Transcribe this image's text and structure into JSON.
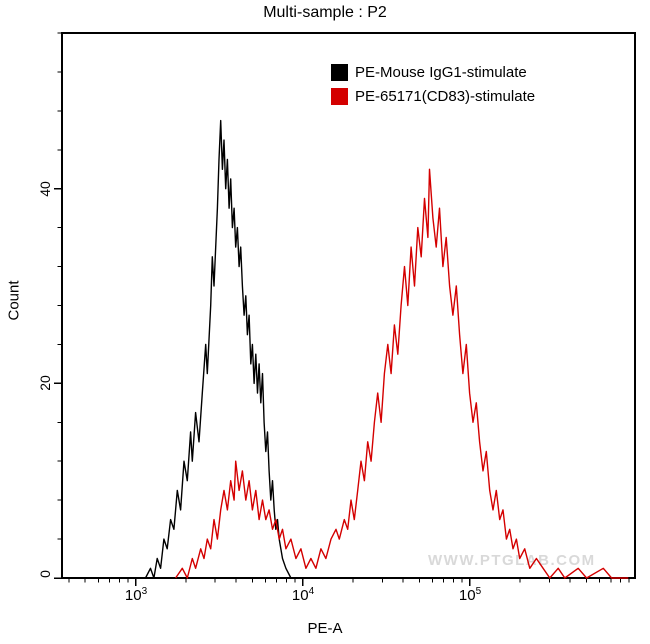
{
  "watermark": "WWW.PTGLAB.COM",
  "chart_data": {
    "type": "line",
    "subtype": "flow-cytometry-overlay-histogram",
    "title": "Multi-sample : P2",
    "xlabel": "PE-A",
    "ylabel": "Count",
    "x_scale": "log10",
    "xlim_log10": [
      2.56,
      5.99
    ],
    "ylim": [
      0,
      56
    ],
    "grid": false,
    "legend_position": "top-right",
    "x_tick_labels": [
      {
        "base": "10",
        "exp": "3"
      },
      {
        "base": "10",
        "exp": "4"
      },
      {
        "base": "10",
        "exp": "5"
      }
    ],
    "x_major_tick_exponents": [
      3,
      4,
      5
    ],
    "y_major_ticks": [
      0,
      20,
      40
    ],
    "y_tick_labels": [
      "0",
      "20",
      "40"
    ],
    "y_minor_tick_step": 4,
    "series": [
      {
        "name": "PE-Mouse IgG1-stimulate",
        "color": "#000000",
        "points": [
          [
            3.06,
            0
          ],
          [
            3.09,
            1
          ],
          [
            3.11,
            0
          ],
          [
            3.13,
            2
          ],
          [
            3.15,
            1
          ],
          [
            3.17,
            4
          ],
          [
            3.19,
            3
          ],
          [
            3.21,
            6
          ],
          [
            3.23,
            5
          ],
          [
            3.25,
            9
          ],
          [
            3.27,
            7
          ],
          [
            3.29,
            12
          ],
          [
            3.31,
            10
          ],
          [
            3.33,
            15
          ],
          [
            3.34,
            12
          ],
          [
            3.36,
            17
          ],
          [
            3.38,
            14
          ],
          [
            3.4,
            19
          ],
          [
            3.42,
            24
          ],
          [
            3.43,
            21
          ],
          [
            3.45,
            28
          ],
          [
            3.46,
            33
          ],
          [
            3.47,
            30
          ],
          [
            3.49,
            38
          ],
          [
            3.5,
            43
          ],
          [
            3.51,
            47
          ],
          [
            3.52,
            42
          ],
          [
            3.53,
            45
          ],
          [
            3.54,
            40
          ],
          [
            3.55,
            43
          ],
          [
            3.56,
            38
          ],
          [
            3.57,
            41
          ],
          [
            3.58,
            36
          ],
          [
            3.59,
            38
          ],
          [
            3.6,
            34
          ],
          [
            3.61,
            36
          ],
          [
            3.62,
            32
          ],
          [
            3.63,
            34
          ],
          [
            3.64,
            30
          ],
          [
            3.65,
            27
          ],
          [
            3.66,
            29
          ],
          [
            3.67,
            25
          ],
          [
            3.68,
            27
          ],
          [
            3.69,
            22
          ],
          [
            3.7,
            24
          ],
          [
            3.71,
            20
          ],
          [
            3.72,
            23
          ],
          [
            3.73,
            19
          ],
          [
            3.74,
            22
          ],
          [
            3.75,
            18
          ],
          [
            3.76,
            21
          ],
          [
            3.77,
            16
          ],
          [
            3.78,
            13
          ],
          [
            3.79,
            15
          ],
          [
            3.8,
            11
          ],
          [
            3.81,
            8
          ],
          [
            3.82,
            10
          ],
          [
            3.83,
            7
          ],
          [
            3.84,
            5
          ],
          [
            3.85,
            6
          ],
          [
            3.86,
            4
          ],
          [
            3.88,
            2
          ],
          [
            3.9,
            1
          ],
          [
            3.93,
            0
          ]
        ]
      },
      {
        "name": "PE-65171(CD83)-stimulate",
        "color": "#d40000",
        "points": [
          [
            3.24,
            0
          ],
          [
            3.28,
            1
          ],
          [
            3.31,
            0
          ],
          [
            3.34,
            2
          ],
          [
            3.36,
            1
          ],
          [
            3.39,
            3
          ],
          [
            3.41,
            2
          ],
          [
            3.43,
            4
          ],
          [
            3.45,
            3
          ],
          [
            3.47,
            6
          ],
          [
            3.49,
            4
          ],
          [
            3.51,
            7
          ],
          [
            3.53,
            9
          ],
          [
            3.55,
            7
          ],
          [
            3.57,
            10
          ],
          [
            3.59,
            8
          ],
          [
            3.6,
            12
          ],
          [
            3.62,
            9
          ],
          [
            3.64,
            11
          ],
          [
            3.66,
            8
          ],
          [
            3.68,
            10
          ],
          [
            3.7,
            7
          ],
          [
            3.72,
            9
          ],
          [
            3.74,
            6
          ],
          [
            3.76,
            8
          ],
          [
            3.78,
            6
          ],
          [
            3.8,
            7
          ],
          [
            3.82,
            5
          ],
          [
            3.84,
            6
          ],
          [
            3.86,
            4
          ],
          [
            3.88,
            5
          ],
          [
            3.9,
            3
          ],
          [
            3.93,
            4
          ],
          [
            3.96,
            2
          ],
          [
            3.99,
            3
          ],
          [
            4.02,
            1
          ],
          [
            4.05,
            2
          ],
          [
            4.08,
            1
          ],
          [
            4.11,
            3
          ],
          [
            4.14,
            2
          ],
          [
            4.17,
            4
          ],
          [
            4.2,
            5
          ],
          [
            4.22,
            4
          ],
          [
            4.25,
            6
          ],
          [
            4.27,
            5
          ],
          [
            4.29,
            8
          ],
          [
            4.31,
            6
          ],
          [
            4.33,
            9
          ],
          [
            4.35,
            12
          ],
          [
            4.37,
            10
          ],
          [
            4.39,
            14
          ],
          [
            4.41,
            12
          ],
          [
            4.43,
            16
          ],
          [
            4.45,
            19
          ],
          [
            4.47,
            16
          ],
          [
            4.49,
            21
          ],
          [
            4.51,
            24
          ],
          [
            4.53,
            21
          ],
          [
            4.55,
            26
          ],
          [
            4.57,
            23
          ],
          [
            4.59,
            28
          ],
          [
            4.61,
            32
          ],
          [
            4.63,
            28
          ],
          [
            4.65,
            34
          ],
          [
            4.67,
            30
          ],
          [
            4.69,
            36
          ],
          [
            4.71,
            33
          ],
          [
            4.73,
            39
          ],
          [
            4.75,
            35
          ],
          [
            4.76,
            42
          ],
          [
            4.78,
            37
          ],
          [
            4.8,
            34
          ],
          [
            4.82,
            38
          ],
          [
            4.84,
            32
          ],
          [
            4.86,
            35
          ],
          [
            4.88,
            30
          ],
          [
            4.9,
            27
          ],
          [
            4.92,
            30
          ],
          [
            4.94,
            25
          ],
          [
            4.96,
            21
          ],
          [
            4.98,
            24
          ],
          [
            5.0,
            19
          ],
          [
            5.02,
            16
          ],
          [
            5.04,
            18
          ],
          [
            5.06,
            14
          ],
          [
            5.08,
            11
          ],
          [
            5.1,
            13
          ],
          [
            5.12,
            9
          ],
          [
            5.14,
            7
          ],
          [
            5.16,
            9
          ],
          [
            5.18,
            6
          ],
          [
            5.2,
            7
          ],
          [
            5.22,
            4
          ],
          [
            5.24,
            5
          ],
          [
            5.26,
            3
          ],
          [
            5.28,
            4
          ],
          [
            5.3,
            2
          ],
          [
            5.33,
            3
          ],
          [
            5.36,
            1
          ],
          [
            5.4,
            2
          ],
          [
            5.44,
            1
          ],
          [
            5.48,
            0
          ],
          [
            5.53,
            1
          ],
          [
            5.57,
            0
          ],
          [
            5.65,
            1
          ],
          [
            5.7,
            0
          ],
          [
            5.8,
            1
          ],
          [
            5.85,
            0
          ],
          [
            5.95,
            0
          ]
        ]
      }
    ]
  }
}
